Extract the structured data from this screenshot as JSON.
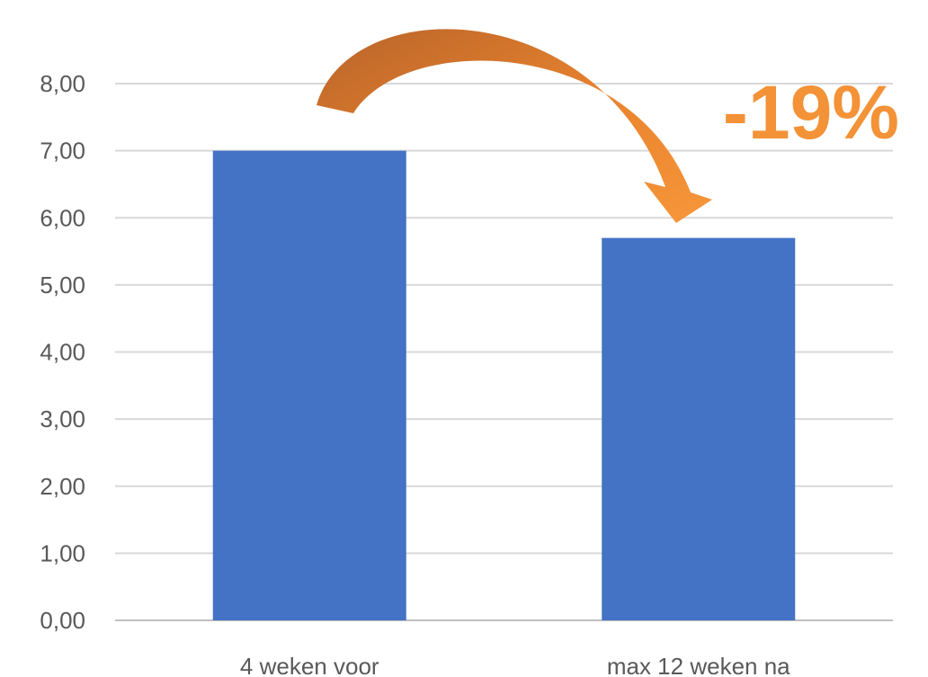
{
  "chart_data": {
    "type": "bar",
    "categories": [
      "4 weken voor",
      "max 12 weken na"
    ],
    "values": [
      7.0,
      5.7
    ],
    "title": "",
    "xlabel": "",
    "ylabel": "",
    "ylim": [
      0,
      8
    ],
    "yticks": [
      "0,00",
      "1,00",
      "2,00",
      "3,00",
      "4,00",
      "5,00",
      "6,00",
      "7,00",
      "8,00"
    ],
    "grid": true,
    "bar_color": "#4472C4",
    "annotations": [
      {
        "text": "-19%",
        "color": "#F39237",
        "arrow": "from bar 1 to bar 2"
      }
    ]
  }
}
